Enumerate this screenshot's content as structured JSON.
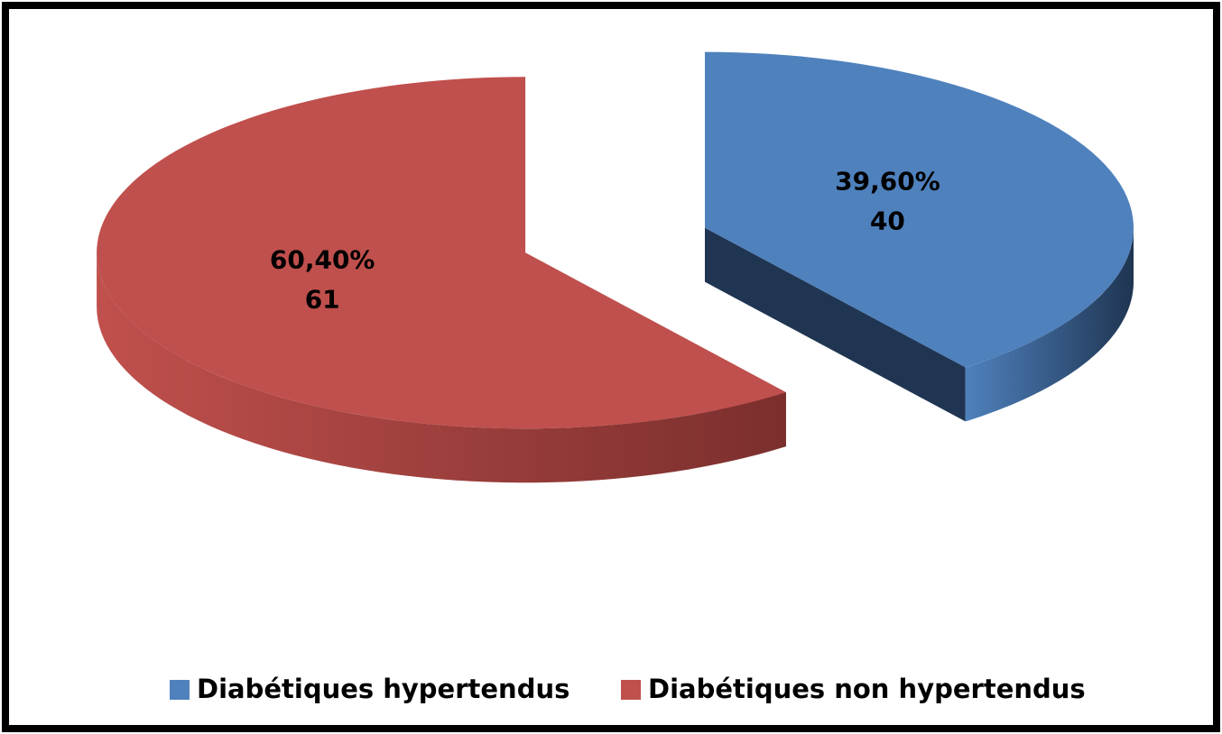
{
  "chart_data": {
    "type": "pie",
    "categories": [
      "Diabétiques hypertendus",
      "Diabétiques non hypertendus"
    ],
    "values": [
      39.6,
      60.4
    ],
    "value_labels": [
      "39,60%",
      "60,40%"
    ],
    "counts": [
      40,
      61
    ],
    "colors": [
      "#4f81bd",
      "#c0504d"
    ],
    "side_colors": [
      "#1f3552",
      "#7b2f2d"
    ],
    "legend": "bottom"
  }
}
